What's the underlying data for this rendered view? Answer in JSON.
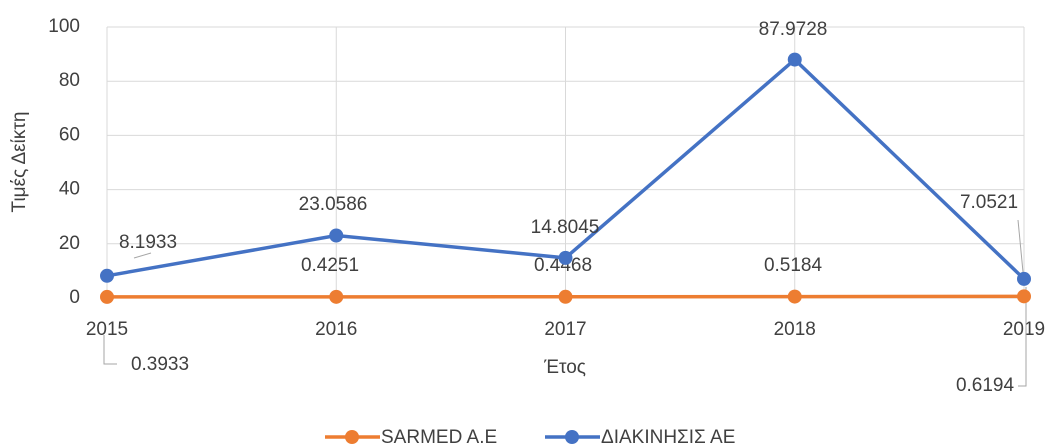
{
  "chart_data": {
    "type": "line",
    "categories": [
      "2015",
      "2016",
      "2017",
      "2018",
      "2019"
    ],
    "series": [
      {
        "name": "SARMED A.E",
        "color": "#ed7d31",
        "values": [
          0.3933,
          0.4251,
          0.4468,
          0.5184,
          0.6194
        ]
      },
      {
        "name": "ΔΙΑΚΙΝΗΣΙΣ ΑΕ",
        "color": "#4472c4",
        "values": [
          8.1933,
          23.0586,
          14.8045,
          87.9728,
          7.0521
        ]
      }
    ],
    "x_label": "Έτος",
    "y_label": "Τιμές  Δείκτη",
    "ylim": [
      0,
      100
    ],
    "yticks": [
      0,
      20,
      40,
      60,
      80,
      100
    ],
    "grid": true,
    "legend": "bottom"
  }
}
